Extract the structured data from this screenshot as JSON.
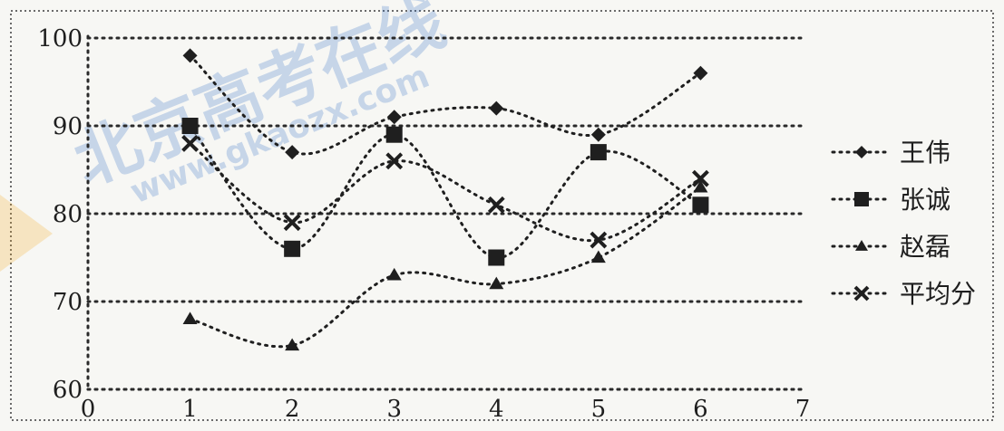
{
  "watermark": {
    "brand": "北京高考在线",
    "url": "www.gkaozx.com"
  },
  "chart_data": {
    "type": "line",
    "title": "",
    "xlabel": "",
    "ylabel": "",
    "x": [
      1,
      2,
      3,
      4,
      5,
      6
    ],
    "xlim": [
      0,
      7
    ],
    "ylim": [
      60,
      100
    ],
    "xticks": [
      "0",
      "1",
      "2",
      "3",
      "4",
      "5",
      "6",
      "7"
    ],
    "yticks": [
      "60",
      "70",
      "80",
      "90",
      "100"
    ],
    "grid": true,
    "legend_position": "right",
    "line_style": "dotted",
    "series": [
      {
        "name": "王伟",
        "marker": "diamond",
        "color": "#1f1f1f",
        "values": [
          98,
          87,
          91,
          92,
          89,
          96
        ]
      },
      {
        "name": "张诚",
        "marker": "square",
        "color": "#1f1f1f",
        "values": [
          90,
          76,
          89,
          75,
          87,
          81
        ]
      },
      {
        "name": "赵磊",
        "marker": "triangle",
        "color": "#1f1f1f",
        "values": [
          68,
          65,
          73,
          72,
          75,
          83
        ]
      },
      {
        "name": "平均分",
        "marker": "x",
        "color": "#1f1f1f",
        "values": [
          88,
          79,
          86,
          81,
          77,
          84
        ]
      }
    ]
  }
}
